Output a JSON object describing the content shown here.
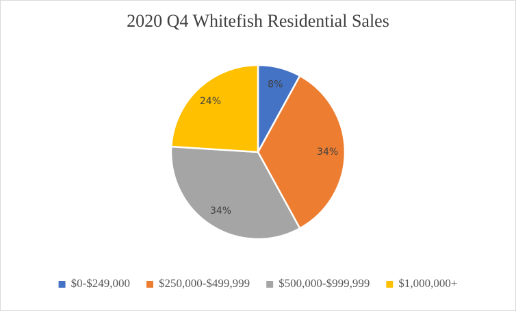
{
  "chart_data": {
    "type": "pie",
    "title": "2020 Q4 Whitefish Residential Sales",
    "categories": [
      "$0-$249,000",
      "$250,000-$499,999",
      "$500,000-$999,999",
      "$1,000,000+"
    ],
    "values": [
      8,
      34,
      34,
      24
    ],
    "value_labels": [
      "8%",
      "34%",
      "34%",
      "24%"
    ],
    "colors": [
      "#4472c4",
      "#ed7d31",
      "#a5a5a5",
      "#ffc000"
    ],
    "legend": "bottom"
  }
}
